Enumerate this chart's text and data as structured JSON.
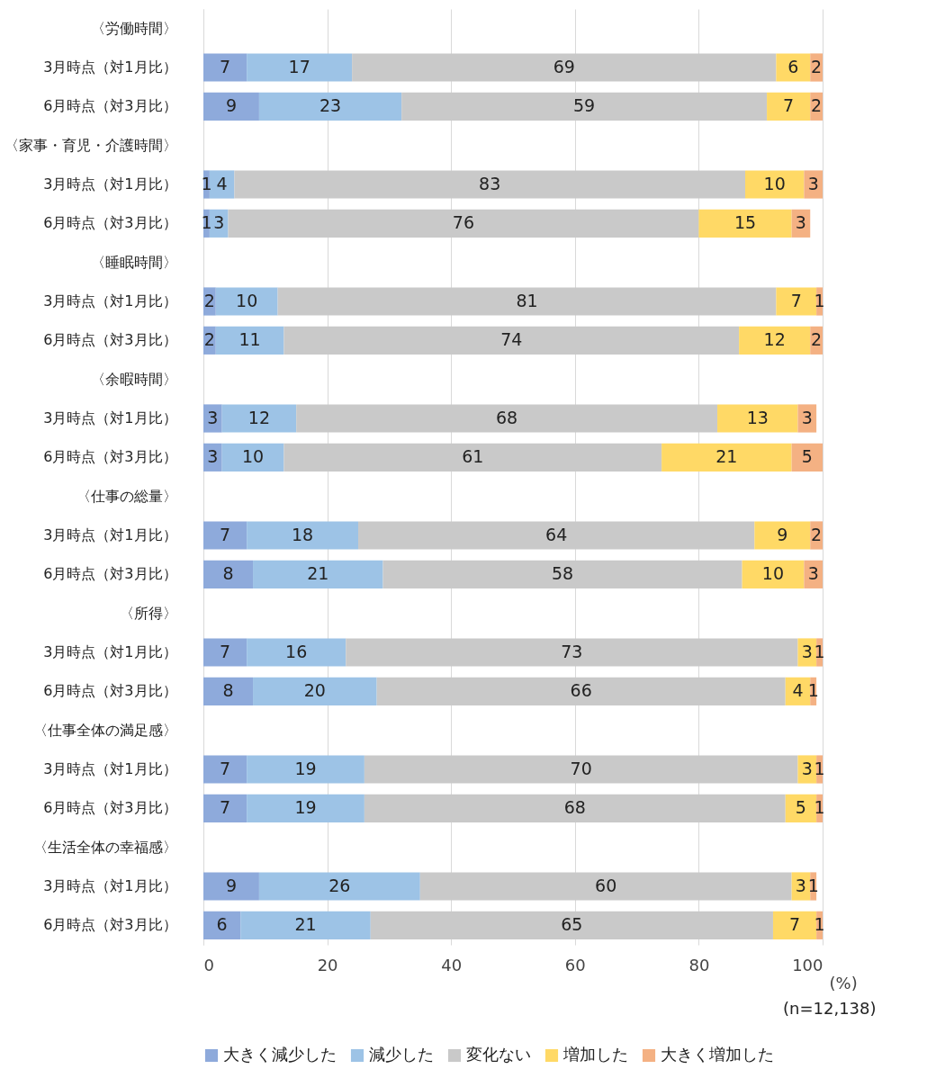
{
  "chart_data": {
    "type": "bar",
    "orientation": "horizontal",
    "stacked": true,
    "xlabel": "(%)",
    "annotations": [
      "(n=12,138)"
    ],
    "categories": [
      "〈労働時間〉",
      "3月時点（対1月比）",
      "6月時点（対3月比）",
      "〈家事・育児・介護時間〉",
      "3月時点（対1月比）",
      "6月時点（対3月比）",
      "〈睡眠時間〉",
      "3月時点（対1月比）",
      "6月時点（対3月比）",
      "〈余暇時間〉",
      "3月時点（対1月比）",
      "6月時点（対3月比）",
      "〈仕事の総量〉",
      "3月時点（対1月比）",
      "6月時点（対3月比）",
      "〈所得〉",
      "3月時点（対1月比）",
      "6月時点（対3月比）",
      "〈仕事全体の満足感〉",
      "3月時点（対1月比）",
      "6月時点（対3月比）",
      "〈生活全体の幸福感〉",
      "3月時点（対1月比）",
      "6月時点（対3月比）"
    ],
    "series": [
      {
        "name": "大きく減少した",
        "color": "#8eaadb",
        "values": [
          null,
          7,
          9,
          null,
          1,
          1,
          null,
          2,
          2,
          null,
          3,
          3,
          null,
          7,
          8,
          null,
          7,
          8,
          null,
          7,
          7,
          null,
          9,
          6
        ],
        "value_labels": [
          null,
          "7",
          "9",
          null,
          "1",
          "1",
          null,
          "2",
          "2",
          null,
          "3",
          "3",
          null,
          "7",
          "8",
          null,
          "7",
          "8",
          null,
          "7",
          "7",
          null,
          "9",
          "6"
        ]
      },
      {
        "name": "減少した",
        "color": "#9dc3e6",
        "values": [
          null,
          17,
          23,
          null,
          4,
          3,
          null,
          10,
          11,
          null,
          12,
          10,
          null,
          18,
          21,
          null,
          16,
          20,
          null,
          19,
          19,
          null,
          26,
          21
        ],
        "value_labels": [
          null,
          "17",
          "23",
          null,
          "4",
          "3",
          null,
          "10",
          "11",
          null,
          "12",
          "10",
          null,
          "18",
          "21",
          null,
          "16",
          "20",
          null,
          "19",
          "19",
          null,
          "26",
          "21"
        ]
      },
      {
        "name": "変化ない",
        "color": "#c9c9c9",
        "values": [
          null,
          68.5,
          59,
          null,
          82.5,
          76,
          null,
          80.5,
          73.5,
          null,
          68,
          61,
          null,
          64,
          58,
          null,
          73,
          66,
          null,
          70,
          68,
          null,
          60,
          65
        ],
        "value_labels": [
          null,
          "69",
          "59",
          null,
          "83",
          "76",
          null,
          "81",
          "74",
          null,
          "68",
          "61",
          null,
          "64",
          "58",
          null,
          "73",
          "66",
          null,
          "70",
          "68",
          null,
          "60",
          "65"
        ]
      },
      {
        "name": "増加した",
        "color": "#ffd966",
        "values": [
          null,
          5.5,
          7,
          null,
          9.5,
          15,
          null,
          6.5,
          11.5,
          null,
          13,
          21,
          null,
          9,
          10,
          null,
          3,
          4,
          null,
          3,
          5,
          null,
          3,
          7
        ],
        "value_labels": [
          null,
          "6",
          "7",
          null,
          "10",
          "15",
          null,
          "7",
          "12",
          null,
          "13",
          "21",
          null,
          "9",
          "10",
          null,
          "3",
          "4",
          null,
          "3",
          "5",
          null,
          "3",
          "7"
        ]
      },
      {
        "name": "大きく増加した",
        "color": "#f4b183",
        "values": [
          null,
          2,
          2,
          null,
          3,
          3,
          null,
          1,
          2,
          null,
          3,
          5,
          null,
          2,
          3,
          null,
          1,
          1,
          null,
          1,
          1,
          null,
          1,
          1
        ],
        "value_labels": [
          null,
          "2",
          "2",
          null,
          "3",
          "3",
          null,
          "1",
          "2",
          null,
          "3",
          "5",
          null,
          "2",
          "3",
          null,
          "1",
          "1",
          null,
          "1",
          "1",
          null,
          "1",
          "1"
        ]
      }
    ],
    "xlim": [
      0,
      100
    ],
    "xticks": [
      0,
      20,
      40,
      60,
      80,
      100
    ],
    "grid": "x",
    "legend": "bottom"
  }
}
